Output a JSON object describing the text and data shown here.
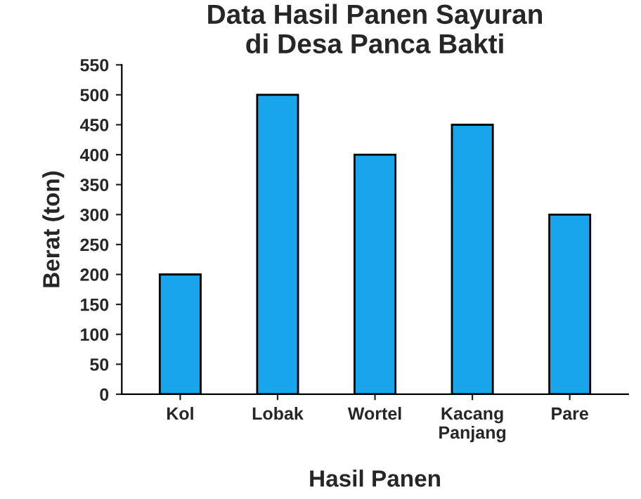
{
  "chart_data": {
    "type": "bar",
    "title": "Data Hasil Panen Sayuran\ndi Desa Panca Bakti",
    "xlabel": "Hasil Panen",
    "ylabel": "Berat (ton)",
    "categories": [
      "Kol",
      "Lobak",
      "Wortel",
      "Kacang\nPanjang",
      "Pare"
    ],
    "values": [
      200,
      500,
      400,
      450,
      300
    ],
    "color": "#19a5ec",
    "ylim": [
      0,
      550
    ],
    "yticks": [
      0,
      50,
      100,
      150,
      200,
      250,
      300,
      350,
      400,
      450,
      500,
      550
    ],
    "grid": false
  }
}
